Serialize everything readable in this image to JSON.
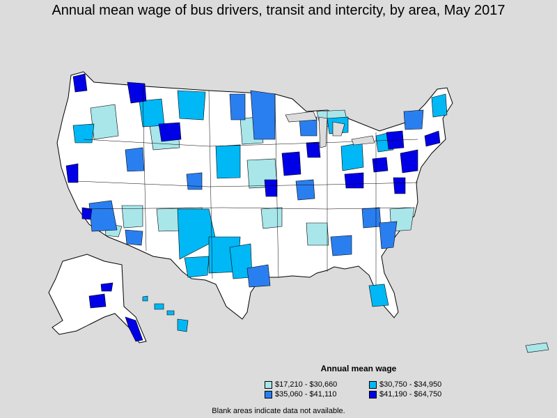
{
  "title": "Annual mean wage of bus drivers, transit and intercity, by area, May 2017",
  "legend": {
    "title": "Annual mean wage",
    "items": [
      {
        "label": "$17,210 - $30,660",
        "color": "#a8e6ea"
      },
      {
        "label": "$30,750 - $34,950",
        "color": "#00b8f5"
      },
      {
        "label": "$35,060 - $41,110",
        "color": "#2a7ff0"
      },
      {
        "label": "$41,190 - $64,750",
        "color": "#0000e6"
      }
    ]
  },
  "footnote": "Blank areas indicate data not available.",
  "colors": {
    "background": "#dcdcdc",
    "land": "#ffffff",
    "border": "#000000"
  }
}
